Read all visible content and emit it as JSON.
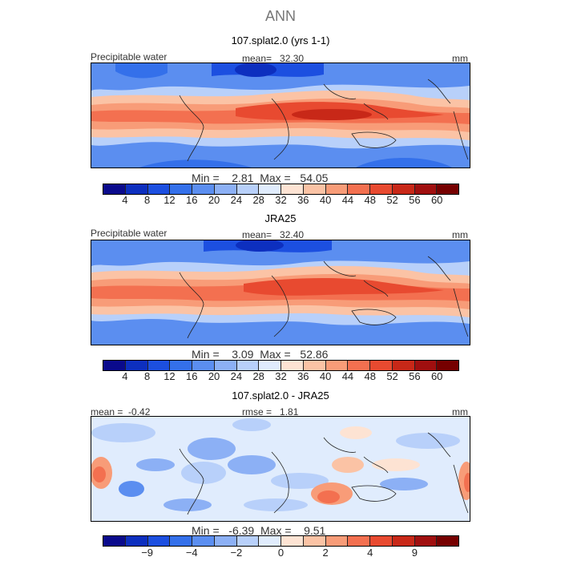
{
  "figure": {
    "title": "ANN"
  },
  "panels": [
    {
      "title": "107.splat2.0 (yrs 1-1)",
      "variable": "Precipitable water",
      "mean_label": "mean=",
      "mean": "32.30",
      "units": "mm",
      "min_label": "Min =",
      "min": "2.81",
      "max_label": "Max =",
      "max": "54.05",
      "cbar_ticks": [
        "4",
        "8",
        "12",
        "16",
        "20",
        "24",
        "28",
        "32",
        "36",
        "40",
        "44",
        "48",
        "52",
        "56",
        "60"
      ],
      "cbar_colors": [
        "#0a0a8c",
        "#0d2fbf",
        "#1c4fe0",
        "#3470ea",
        "#5b8ef0",
        "#8cb0f5",
        "#b8d0fa",
        "#e0ecfd",
        "#fde3d3",
        "#fbc3a5",
        "#f89c78",
        "#f37050",
        "#e84a30",
        "#c82818",
        "#a00f0f",
        "#760000"
      ]
    },
    {
      "title": "JRA25",
      "variable": "Precipitable water",
      "mean_label": "mean=",
      "mean": "32.40",
      "units": "mm",
      "min_label": "Min =",
      "min": "3.09",
      "max_label": "Max =",
      "max": "52.86",
      "cbar_ticks": [
        "4",
        "8",
        "12",
        "16",
        "20",
        "24",
        "28",
        "32",
        "36",
        "40",
        "44",
        "48",
        "52",
        "56",
        "60"
      ],
      "cbar_colors": [
        "#0a0a8c",
        "#0d2fbf",
        "#1c4fe0",
        "#3470ea",
        "#5b8ef0",
        "#8cb0f5",
        "#b8d0fa",
        "#e0ecfd",
        "#fde3d3",
        "#fbc3a5",
        "#f89c78",
        "#f37050",
        "#e84a30",
        "#c82818",
        "#a00f0f",
        "#760000"
      ]
    },
    {
      "title": "107.splat2.0 - JRA25",
      "mean_label": "mean =",
      "mean": "-0.42",
      "rmse_label": "rmse =",
      "rmse": "1.81",
      "units": "mm",
      "min_label": "Min =",
      "min": "-6.39",
      "max_label": "Max =",
      "max": "9.51",
      "cbar_ticks": [
        "-9",
        "-4",
        "-2",
        "0",
        "2",
        "4",
        "9"
      ],
      "cbar_colors": [
        "#0a0a8c",
        "#0d2fbf",
        "#1c4fe0",
        "#3470ea",
        "#5b8ef0",
        "#8cb0f5",
        "#b8d0fa",
        "#e0ecfd",
        "#fde3d3",
        "#fbc3a5",
        "#f89c78",
        "#f37050",
        "#e84a30",
        "#c82818",
        "#a00f0f",
        "#760000"
      ]
    }
  ]
}
